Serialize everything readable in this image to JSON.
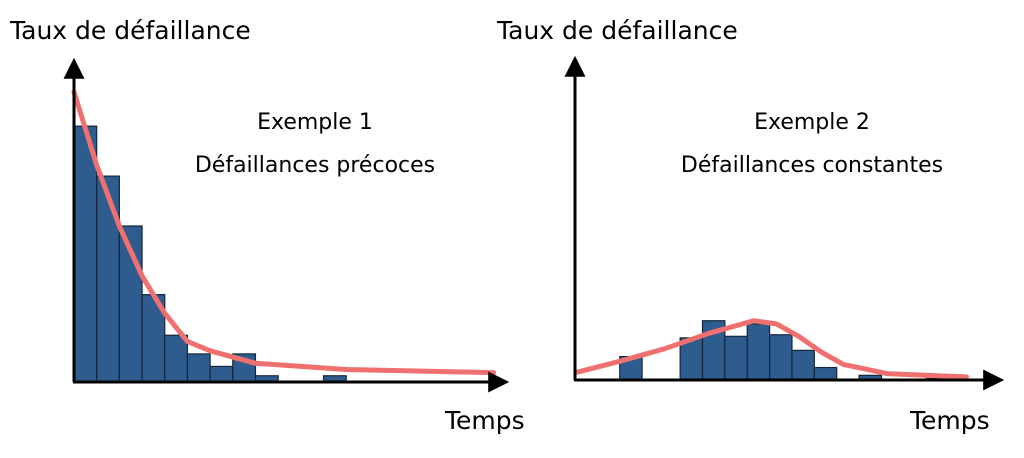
{
  "chart_data": [
    {
      "type": "histogram",
      "y_label": "Taux de défaillance",
      "x_label": "Temps",
      "annotations": [
        "Exemple 1",
        "Défaillances précoces"
      ],
      "bins": [
        0,
        1,
        2,
        3,
        4,
        5,
        6,
        7,
        8,
        9,
        10,
        11,
        12
      ],
      "values": [
        82,
        66,
        50,
        28,
        15,
        9,
        5,
        9,
        2,
        0,
        0,
        2
      ],
      "color": "#2e5c8e",
      "curve": {
        "color": "#f07070",
        "x": [
          0,
          1,
          2,
          3,
          4,
          5,
          6,
          8,
          12,
          18.5
        ],
        "values": [
          93,
          69.5,
          50,
          34,
          22,
          13,
          10,
          6,
          4,
          3
        ]
      },
      "xlim": [
        0,
        19
      ],
      "ylim": [
        0,
        100
      ]
    },
    {
      "type": "histogram",
      "y_label": "Taux de défaillance",
      "x_label": "Temps",
      "annotations": [
        "Exemple 2",
        "Défaillances constantes"
      ],
      "bins": [
        2,
        3,
        4.7,
        5.7,
        6.7,
        7.7,
        8.7,
        9.7,
        10.7,
        11.7,
        12.7,
        13.7,
        14.7,
        15.7,
        16.7
      ],
      "values": [
        7.5,
        0,
        13.5,
        19,
        14,
        18,
        14.5,
        9.5,
        4,
        0,
        1.5,
        0,
        0,
        0.5
      ],
      "color": "#2e5c8e",
      "curve": {
        "color": "#f07070",
        "x": [
          0.1,
          2,
          4,
          6,
          8,
          9,
          10,
          11,
          12,
          14,
          17.5
        ],
        "values": [
          2.5,
          6,
          10,
          15,
          19,
          18,
          14,
          9,
          5,
          2,
          1
        ]
      },
      "xlim": [
        0,
        19
      ],
      "ylim": [
        0,
        100
      ]
    }
  ]
}
